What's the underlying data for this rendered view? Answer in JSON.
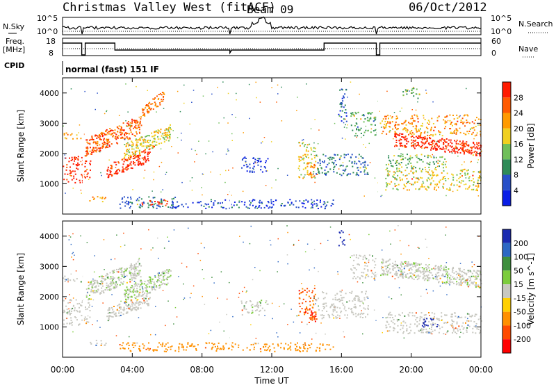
{
  "header": {
    "station": "Christmas Valley West (fitACF)",
    "beam": "Beam 09",
    "date": "06/Oct/2012"
  },
  "panels": {
    "nsky_label": "N.Sky",
    "nsearch_label": "N.Search",
    "nsky_ticks": [
      "10^5",
      "10^0"
    ],
    "nsearch_ticks": [
      "10^5",
      "10^0"
    ],
    "freq_label": "Freq.",
    "freq_unit": "[MHz]",
    "freq_ticks": [
      "18",
      "8"
    ],
    "nave_label": "Nave",
    "nave_ticks": [
      "60",
      "0"
    ],
    "cpid_label": "CPID",
    "cpid_value": "normal (fast) 151 IF"
  },
  "colors": {
    "power": [
      "#0a1ee6",
      "#2850c8",
      "#2e8b57",
      "#6fbf5a",
      "#f0d020",
      "#ff9a00",
      "#ff5a00",
      "#ff1a00"
    ],
    "velocity": [
      "#1a2ab0",
      "#2d68c4",
      "#3e8f3e",
      "#7ccc3c",
      "#c8c8c0",
      "#ffd000",
      "#ff9000",
      "#ff4a00",
      "#ff0000"
    ]
  },
  "chart_data": [
    {
      "type": "heatmap",
      "name": "power",
      "ylabel": "Slant Range [km]",
      "y_ticks": [
        "1000",
        "2000",
        "3000",
        "4000"
      ],
      "ylim": [
        0,
        4500
      ],
      "xlim": [
        0,
        24
      ],
      "colorbar_label": "Power [dB]",
      "colorbar_ticks": [
        "4",
        "8",
        "12",
        "16",
        "20",
        "24",
        "28"
      ],
      "colorbar_range": [
        0,
        32
      ],
      "regions": [
        {
          "t0": 0.0,
          "t1": 1.6,
          "r0": 1050,
          "r1": 1950,
          "v": 30
        },
        {
          "t0": 0.0,
          "t1": 1.2,
          "r0": 2500,
          "r1": 2700,
          "v": 22
        },
        {
          "t0": 1.3,
          "t1": 4.5,
          "r0": 1900,
          "r1": 3300,
          "v": 26,
          "slope": 1
        },
        {
          "t0": 2.5,
          "t1": 5.0,
          "r0": 1200,
          "r1": 2200,
          "v": 29,
          "slope": 1
        },
        {
          "t0": 3.5,
          "t1": 6.2,
          "r0": 1800,
          "r1": 3000,
          "v": 18,
          "slope": 1
        },
        {
          "t0": 4.5,
          "t1": 5.8,
          "r0": 3200,
          "r1": 4100,
          "v": 24,
          "slope": 1
        },
        {
          "t0": 1.5,
          "t1": 2.5,
          "r0": 400,
          "r1": 600,
          "v": 22
        },
        {
          "t0": 3.2,
          "t1": 6.5,
          "r0": 200,
          "r1": 600,
          "v": 8
        },
        {
          "t0": 4.5,
          "t1": 6.0,
          "r0": 300,
          "r1": 500,
          "v": 30
        },
        {
          "t0": 6.2,
          "t1": 15.5,
          "r0": 200,
          "r1": 500,
          "v": 5
        },
        {
          "t0": 10.2,
          "t1": 11.8,
          "r0": 1400,
          "r1": 1900,
          "v": 4
        },
        {
          "t0": 13.5,
          "t1": 14.5,
          "r0": 1200,
          "r1": 2400,
          "v": 18
        },
        {
          "t0": 14.0,
          "t1": 14.6,
          "r0": 1200,
          "r1": 1700,
          "v": 24
        },
        {
          "t0": 14.5,
          "t1": 17.5,
          "r0": 1300,
          "r1": 2000,
          "v": 8
        },
        {
          "t0": 15.8,
          "t1": 16.3,
          "r0": 3000,
          "r1": 4200,
          "v": 6
        },
        {
          "t0": 16.5,
          "t1": 18.0,
          "r0": 2600,
          "r1": 3400,
          "v": 12
        },
        {
          "t0": 18.2,
          "t1": 24.0,
          "r0": 2600,
          "r1": 3300,
          "v": 22
        },
        {
          "t0": 19.0,
          "t1": 24.0,
          "r0": 1700,
          "r1": 2700,
          "v": 30,
          "slope": -1
        },
        {
          "t0": 18.5,
          "t1": 22.0,
          "r0": 1500,
          "r1": 2000,
          "v": 14
        },
        {
          "t0": 18.5,
          "t1": 24.0,
          "r0": 800,
          "r1": 1500,
          "v": 18
        },
        {
          "t0": 19.5,
          "t1": 20.5,
          "r0": 3800,
          "r1": 4200,
          "v": 14
        }
      ]
    },
    {
      "type": "heatmap",
      "name": "velocity",
      "ylabel": "Slant Range [km]",
      "y_ticks": [
        "1000",
        "2000",
        "3000",
        "4000"
      ],
      "ylim": [
        0,
        4500
      ],
      "xlim": [
        0,
        24
      ],
      "xlabel": "Time UT",
      "x_ticks": [
        "00:00",
        "04:00",
        "08:00",
        "12:00",
        "16:00",
        "20:00",
        "00:00"
      ],
      "colorbar_label": "Velocity [m s^-1]",
      "colorbar_ticks": [
        "200",
        "100",
        "50",
        "15",
        "-15",
        "-50",
        "-100",
        "-200"
      ],
      "colorbar_range": [
        -250,
        250
      ],
      "regions": [
        {
          "t0": 0.0,
          "t1": 1.6,
          "r0": 1050,
          "r1": 1950,
          "v": 0
        },
        {
          "t0": 0.0,
          "t1": 1.2,
          "r0": 2500,
          "r1": 2700,
          "v": 0
        },
        {
          "t0": 1.3,
          "t1": 4.5,
          "r0": 1900,
          "r1": 3300,
          "v": 5,
          "slope": 1
        },
        {
          "t0": 2.5,
          "t1": 5.0,
          "r0": 1200,
          "r1": 2200,
          "v": 0,
          "slope": 1
        },
        {
          "t0": 3.5,
          "t1": 6.2,
          "r0": 1800,
          "r1": 3000,
          "v": 10,
          "slope": 1
        },
        {
          "t0": 1.5,
          "t1": 2.5,
          "r0": 400,
          "r1": 600,
          "v": 0
        },
        {
          "t0": 3.2,
          "t1": 15.5,
          "r0": 200,
          "r1": 500,
          "v": -60
        },
        {
          "t0": 10.2,
          "t1": 11.8,
          "r0": 1400,
          "r1": 1900,
          "v": 5
        },
        {
          "t0": 13.5,
          "t1": 14.5,
          "r0": 1100,
          "r1": 2300,
          "v": -80
        },
        {
          "t0": 14.0,
          "t1": 14.6,
          "r0": 1200,
          "r1": 1600,
          "v": -140
        },
        {
          "t0": 14.5,
          "t1": 17.5,
          "r0": 1300,
          "r1": 2200,
          "v": 0
        },
        {
          "t0": 15.8,
          "t1": 16.2,
          "r0": 3700,
          "r1": 4200,
          "v": 220
        },
        {
          "t0": 16.5,
          "t1": 18.0,
          "r0": 2600,
          "r1": 3400,
          "v": 0
        },
        {
          "t0": 18.2,
          "t1": 24.0,
          "r0": 2000,
          "r1": 3300,
          "v": 5,
          "slope": -1
        },
        {
          "t0": 18.5,
          "t1": 24.0,
          "r0": 800,
          "r1": 1500,
          "v": 0
        },
        {
          "t0": 20.5,
          "t1": 21.5,
          "r0": 1000,
          "r1": 1300,
          "v": 180
        }
      ]
    }
  ]
}
